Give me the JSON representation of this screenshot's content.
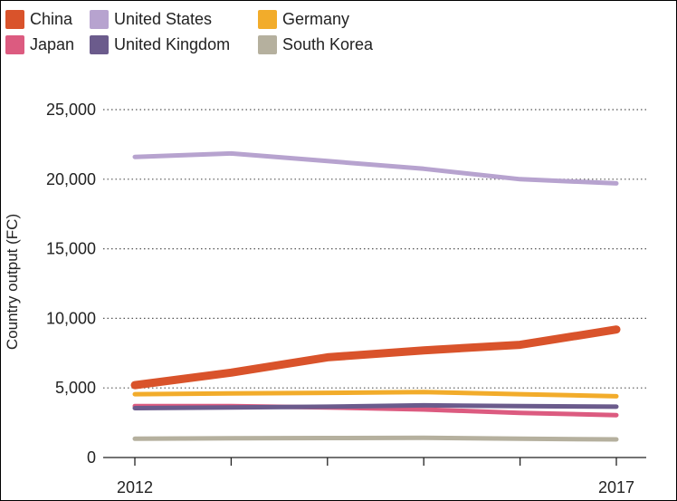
{
  "chart_data": {
    "type": "line",
    "title": "",
    "xlabel": "",
    "ylabel": "Country output (FC)",
    "x": [
      2012,
      2013,
      2014,
      2015,
      2016,
      2017
    ],
    "x_tick_labels": [
      "2012",
      "",
      "",
      "",
      "",
      "2017"
    ],
    "ylim": [
      0,
      25000
    ],
    "y_ticks": [
      0,
      5000,
      10000,
      15000,
      20000,
      25000
    ],
    "y_tick_labels": [
      "0",
      "5,000",
      "10,000",
      "15,000",
      "20,000",
      "25,000"
    ],
    "grid": "horizontal dotted",
    "legend_position": "top-left",
    "series": [
      {
        "name": "China",
        "color": "#d9532b",
        "values": [
          5200,
          6100,
          7200,
          7700,
          8100,
          9200
        ]
      },
      {
        "name": "United States",
        "color": "#b7a3cf",
        "values": [
          21600,
          21850,
          21300,
          20750,
          20000,
          19700
        ]
      },
      {
        "name": "Germany",
        "color": "#f2ac2b",
        "values": [
          4550,
          4600,
          4650,
          4700,
          4550,
          4400
        ]
      },
      {
        "name": "Japan",
        "color": "#dc5b80",
        "values": [
          3700,
          3700,
          3600,
          3450,
          3200,
          3050
        ]
      },
      {
        "name": "United Kingdom",
        "color": "#6b5b8c",
        "values": [
          3550,
          3600,
          3650,
          3750,
          3700,
          3650
        ]
      },
      {
        "name": "South Korea",
        "color": "#b5b09e",
        "values": [
          1350,
          1380,
          1400,
          1420,
          1350,
          1300
        ]
      }
    ]
  }
}
